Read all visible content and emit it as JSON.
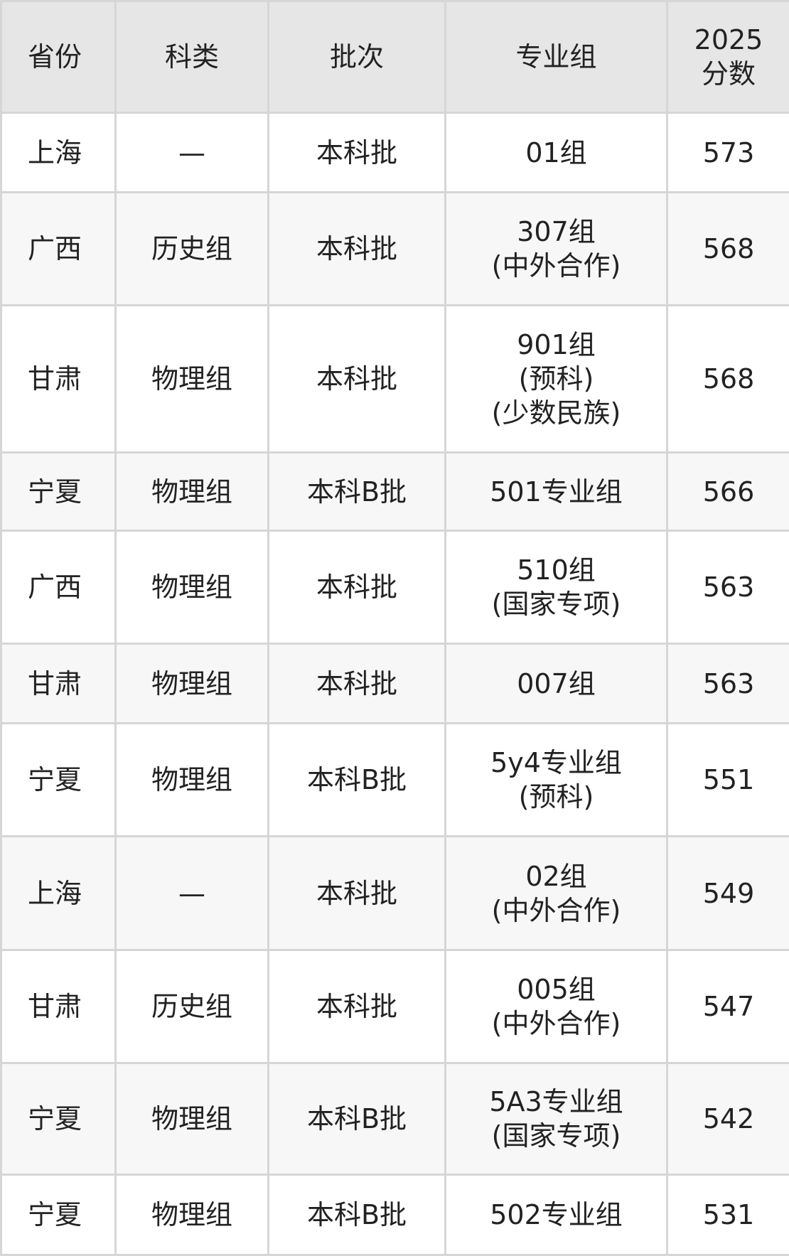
{
  "headers": [
    "省份",
    "科类",
    "批次",
    "专业组",
    [
      "2025",
      "分数"
    ]
  ],
  "rows": [
    {
      "province": "上海",
      "category": "—",
      "batch": "本科批",
      "group": [
        "01组"
      ],
      "score": "573"
    },
    {
      "province": "广西",
      "category": "历史组",
      "batch": "本科批",
      "group": [
        "307组",
        "(中外合作)"
      ],
      "score": "568"
    },
    {
      "province": "甘肃",
      "category": "物理组",
      "batch": "本科批",
      "group": [
        "901组",
        "(预科)",
        "(少数民族)"
      ],
      "score": "568"
    },
    {
      "province": "宁夏",
      "category": "物理组",
      "batch": "本科B批",
      "group": [
        "501专业组"
      ],
      "score": "566"
    },
    {
      "province": "广西",
      "category": "物理组",
      "batch": "本科批",
      "group": [
        "510组",
        "(国家专项)"
      ],
      "score": "563"
    },
    {
      "province": "甘肃",
      "category": "物理组",
      "batch": "本科批",
      "group": [
        "007组"
      ],
      "score": "563"
    },
    {
      "province": "宁夏",
      "category": "物理组",
      "batch": "本科B批",
      "group": [
        "5y4专业组",
        "(预科)"
      ],
      "score": "551"
    },
    {
      "province": "上海",
      "category": "—",
      "batch": "本科批",
      "group": [
        "02组",
        "(中外合作)"
      ],
      "score": "549"
    },
    {
      "province": "甘肃",
      "category": "历史组",
      "batch": "本科批",
      "group": [
        "005组",
        "(中外合作)"
      ],
      "score": "547"
    },
    {
      "province": "宁夏",
      "category": "物理组",
      "batch": "本科B批",
      "group": [
        "5A3专业组",
        "(国家专项)"
      ],
      "score": "542"
    },
    {
      "province": "宁夏",
      "category": "物理组",
      "batch": "本科B批",
      "group": [
        "502专业组"
      ],
      "score": "531"
    }
  ]
}
